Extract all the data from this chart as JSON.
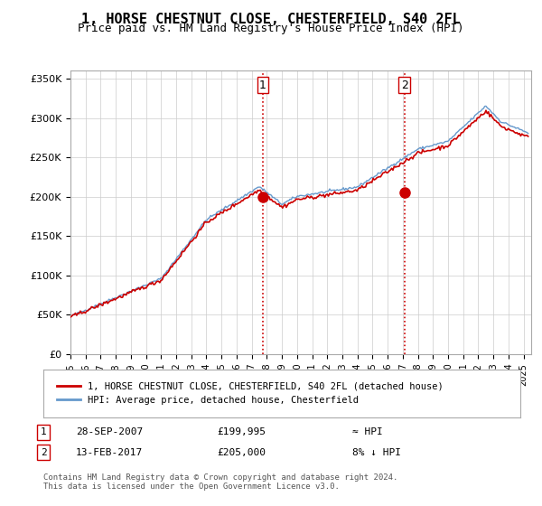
{
  "title": "1, HORSE CHESTNUT CLOSE, CHESTERFIELD, S40 2FL",
  "subtitle": "Price paid vs. HM Land Registry's House Price Index (HPI)",
  "title_fontsize": 11,
  "subtitle_fontsize": 9,
  "ylabel_ticks": [
    "£0",
    "£50K",
    "£100K",
    "£150K",
    "£200K",
    "£250K",
    "£300K",
    "£350K"
  ],
  "ytick_values": [
    0,
    50000,
    100000,
    150000,
    200000,
    250000,
    300000,
    350000
  ],
  "ylim": [
    0,
    360000
  ],
  "xlim_start": 1995.0,
  "xlim_end": 2025.5,
  "sale1_x": 2007.74,
  "sale1_y": 199995,
  "sale2_x": 2017.12,
  "sale2_y": 205000,
  "sale1_label": "28-SEP-2007",
  "sale1_price": "£199,995",
  "sale1_hpi": "≈ HPI",
  "sale2_label": "13-FEB-2017",
  "sale2_price": "£205,000",
  "sale2_hpi": "8% ↓ HPI",
  "legend_line1": "1, HORSE CHESTNUT CLOSE, CHESTERFIELD, S40 2FL (detached house)",
  "legend_line2": "HPI: Average price, detached house, Chesterfield",
  "footer": "Contains HM Land Registry data © Crown copyright and database right 2024.\nThis data is licensed under the Open Government Licence v3.0.",
  "line_color_red": "#cc0000",
  "line_color_blue": "#6699cc",
  "marker_color_red": "#cc0000",
  "dashed_color": "#cc0000",
  "background_color": "#ffffff",
  "grid_color": "#cccccc"
}
